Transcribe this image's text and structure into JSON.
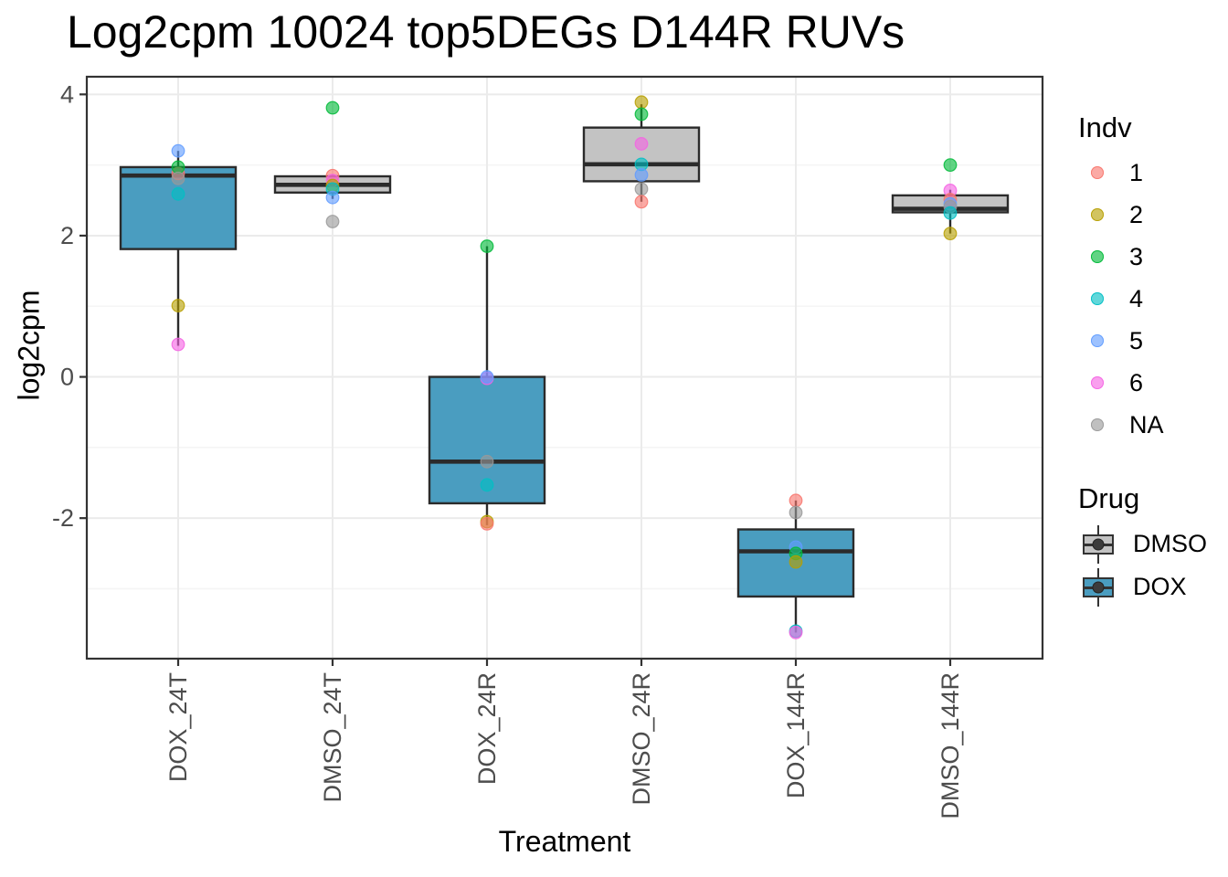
{
  "chart_data": {
    "type": "boxplot",
    "title": "Log2cpm 10024 top5DEGs D144R RUVs",
    "xlabel": "Treatment",
    "ylabel": "log2cpm",
    "categories": [
      "DOX_24T",
      "DMSO_24T",
      "DOX_24R",
      "DMSO_24R",
      "DOX_144R",
      "DMSO_144R"
    ],
    "y_axis": {
      "range": [
        -3.99,
        4.25
      ],
      "ticks": [
        4,
        2,
        0,
        -2
      ],
      "minor_ticks": [
        3,
        1,
        -1,
        -3
      ]
    },
    "grid": "on",
    "legend_position": "right",
    "groups": [
      {
        "category": "DOX_24T",
        "drug": "DOX",
        "box": {
          "whisker_low": 0.44,
          "q1": 1.81,
          "median": 2.85,
          "q3": 2.97,
          "whisker_high": 3.2
        },
        "points": [
          {
            "indv": "1",
            "value": 2.88
          },
          {
            "indv": "3",
            "value": 2.97
          },
          {
            "indv": "NA",
            "value": 2.81
          },
          {
            "indv": "4",
            "value": 2.59
          },
          {
            "indv": "5",
            "value": 3.2
          },
          {
            "indv": "2",
            "value": 1.01
          },
          {
            "indv": "6",
            "value": 0.46
          }
        ]
      },
      {
        "category": "DMSO_24T",
        "drug": "DMSO",
        "box": {
          "whisker_low": 2.52,
          "q1": 2.61,
          "median": 2.72,
          "q3": 2.84,
          "whisker_high": 2.86
        },
        "points": [
          {
            "indv": "3",
            "value": 3.81
          },
          {
            "indv": "1",
            "value": 2.85
          },
          {
            "indv": "6",
            "value": 2.78
          },
          {
            "indv": "2",
            "value": 2.71
          },
          {
            "indv": "4",
            "value": 2.66
          },
          {
            "indv": "5",
            "value": 2.54
          },
          {
            "indv": "NA",
            "value": 2.2
          }
        ]
      },
      {
        "category": "DOX_24R",
        "drug": "DOX",
        "box": {
          "whisker_low": -2.1,
          "q1": -1.79,
          "median": -1.2,
          "q3": 0.0,
          "whisker_high": 1.85
        },
        "points": [
          {
            "indv": "3",
            "value": 1.85
          },
          {
            "indv": "6",
            "value": -0.02
          },
          {
            "indv": "5",
            "value": 0.0
          },
          {
            "indv": "NA",
            "value": -1.2
          },
          {
            "indv": "4",
            "value": -1.53
          },
          {
            "indv": "2",
            "value": -2.05
          },
          {
            "indv": "1",
            "value": -2.08
          }
        ]
      },
      {
        "category": "DMSO_24R",
        "drug": "DMSO",
        "box": {
          "whisker_low": 2.48,
          "q1": 2.77,
          "median": 3.01,
          "q3": 3.53,
          "whisker_high": 3.86
        },
        "points": [
          {
            "indv": "2",
            "value": 3.89
          },
          {
            "indv": "3",
            "value": 3.72
          },
          {
            "indv": "6",
            "value": 3.3
          },
          {
            "indv": "4",
            "value": 3.01
          },
          {
            "indv": "5",
            "value": 2.86
          },
          {
            "indv": "NA",
            "value": 2.66
          },
          {
            "indv": "1",
            "value": 2.48
          }
        ]
      },
      {
        "category": "DOX_144R",
        "drug": "DOX",
        "box": {
          "whisker_low": -3.62,
          "q1": -3.11,
          "median": -2.47,
          "q3": -2.16,
          "whisker_high": -1.75
        },
        "points": [
          {
            "indv": "1",
            "value": -1.75
          },
          {
            "indv": "NA",
            "value": -1.92
          },
          {
            "indv": "5",
            "value": -2.41
          },
          {
            "indv": "3",
            "value": -2.5
          },
          {
            "indv": "2",
            "value": -2.62
          },
          {
            "indv": "4",
            "value": -3.6
          },
          {
            "indv": "6",
            "value": -3.62
          }
        ]
      },
      {
        "category": "DMSO_144R",
        "drug": "DMSO",
        "box": {
          "whisker_low": 2.03,
          "q1": 2.33,
          "median": 2.38,
          "q3": 2.57,
          "whisker_high": 2.65
        },
        "points": [
          {
            "indv": "3",
            "value": 3.0
          },
          {
            "indv": "6",
            "value": 2.64
          },
          {
            "indv": "1",
            "value": 2.51
          },
          {
            "indv": "5",
            "value": 2.45
          },
          {
            "indv": "NA",
            "value": 2.41
          },
          {
            "indv": "4",
            "value": 2.32
          },
          {
            "indv": "2",
            "value": 2.03
          }
        ]
      }
    ],
    "legend": {
      "indv": {
        "title": "Indv",
        "entries": [
          {
            "label": "1",
            "color": "#F8766D"
          },
          {
            "label": "2",
            "color": "#B79F00"
          },
          {
            "label": "3",
            "color": "#00BA38"
          },
          {
            "label": "4",
            "color": "#00BFC4"
          },
          {
            "label": "5",
            "color": "#619CFF"
          },
          {
            "label": "6",
            "color": "#F564E3"
          },
          {
            "label": "NA",
            "color": "#999999"
          }
        ]
      },
      "drug": {
        "title": "Drug",
        "entries": [
          {
            "label": "DMSO",
            "color": "#C3C3C3"
          },
          {
            "label": "DOX",
            "color": "#4A9DC0"
          }
        ]
      }
    },
    "style": {
      "point_alpha": 0.62,
      "box_border": "#2B2B2B",
      "panel_border": "#333333",
      "grid_major": "#EBEBEB",
      "grid_minor": "#F5F5F5",
      "tick_label_color": "#4D4D4D"
    }
  }
}
